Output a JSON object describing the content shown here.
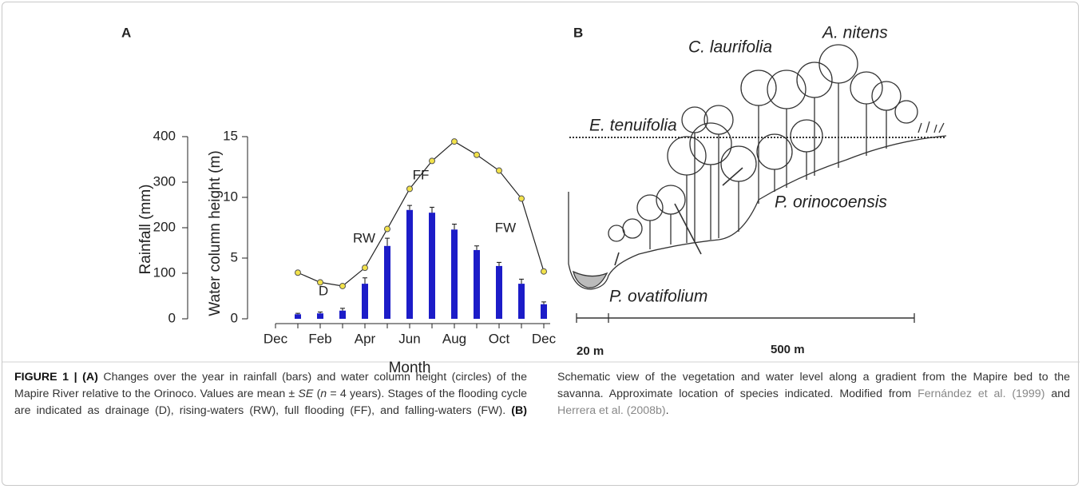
{
  "chart_data": {
    "type": "bar",
    "panel_label": "A",
    "ylabel": "Rainfall (mm)",
    "y2label": "Water column height (m)",
    "xlabel": "Month",
    "categories": [
      "Dec",
      null,
      "Feb",
      null,
      "Apr",
      null,
      "Jun",
      null,
      "Aug",
      null,
      "Oct",
      null,
      "Dec"
    ],
    "series": [
      {
        "color": "#1c1cc8",
        "values": [
          null,
          10,
          12,
          18,
          77,
          160,
          239,
          233,
          196,
          151,
          116,
          77,
          32
        ],
        "errors": [
          null,
          2,
          3,
          5,
          13,
          17,
          10,
          12,
          12,
          9,
          8,
          10,
          5
        ]
      },
      {
        "color": "#f2e24a",
        "axis": "y2",
        "values": [
          null,
          3.8,
          3.0,
          2.7,
          4.2,
          7.4,
          10.7,
          13.0,
          14.6,
          13.5,
          12.2,
          9.9,
          3.9
        ]
      }
    ],
    "ylim": [
      0,
      400
    ],
    "yticks": [
      0,
      100,
      200,
      300,
      400
    ],
    "y2lim": [
      0,
      15
    ],
    "y2ticks": [
      0,
      5,
      10,
      15
    ],
    "annotations": [
      "D",
      "RW",
      "FF",
      "FW"
    ]
  },
  "panel_b": {
    "label": "B",
    "species": [
      "E. tenuifolia",
      "C. laurifolia",
      "A. nitens",
      "P. orinocoensis",
      "P. ovatifolium"
    ],
    "scale": [
      "20 m",
      "500 m"
    ]
  },
  "caption": {
    "label": "FIGURE 1 |",
    "a_marker": "(A)",
    "a_text_1": "Changes over the year in rainfall (bars) and water column height (circles) of the Mapire River relative to the Orinoco. Values are mean ±",
    "se": "SE",
    "a_text_2": "(",
    "n": "n",
    "a_text_3": "= 4 years). Stages of the flooding cycle are indicated as drainage (D), rising-waters (RW), full flooding (FF), and falling-waters (FW).",
    "b_marker": "(B)",
    "b_text": "Schematic view of the vegetation and water level along a gradient from the Mapire bed to the savanna. Approximate location of species indicated. Modified from",
    "ref1": "Fernández et al. (1999)",
    "and": "and",
    "ref2": "Herrera et al. (2008b)",
    "end": "."
  }
}
